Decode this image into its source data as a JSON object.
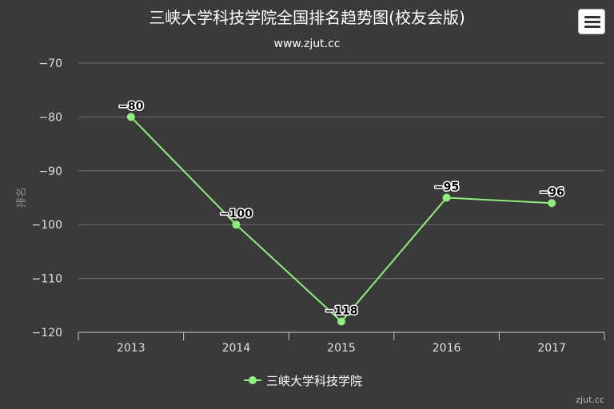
{
  "chart_data": {
    "type": "line",
    "title": "三峡大学科技学院全国排名趋势图(校友会版)",
    "subtitle": "www.zjut.cc",
    "xlabel": "",
    "ylabel": "排名",
    "categories": [
      "2013",
      "2014",
      "2015",
      "2016",
      "2017"
    ],
    "series": [
      {
        "name": "三峡大学科技学院",
        "values": [
          -80,
          -100,
          -118,
          -95,
          -96
        ]
      }
    ],
    "yticks": [
      -70,
      -80,
      -90,
      -100,
      -110,
      -120
    ],
    "ytick_labels": [
      "−70",
      "−80",
      "−90",
      "−100",
      "−110",
      "−120"
    ],
    "data_labels": [
      "−80",
      "−100",
      "−118",
      "−95",
      "−96"
    ],
    "ylim": [
      -120,
      -70
    ],
    "grid": true,
    "legend_position": "bottom-center",
    "colors": {
      "background": "#3a3a3a",
      "series": "#90ee7e",
      "grid": "#6e6e6e"
    }
  },
  "credit": "zjut.cc",
  "menu": {
    "icon": "hamburger-menu-icon"
  }
}
